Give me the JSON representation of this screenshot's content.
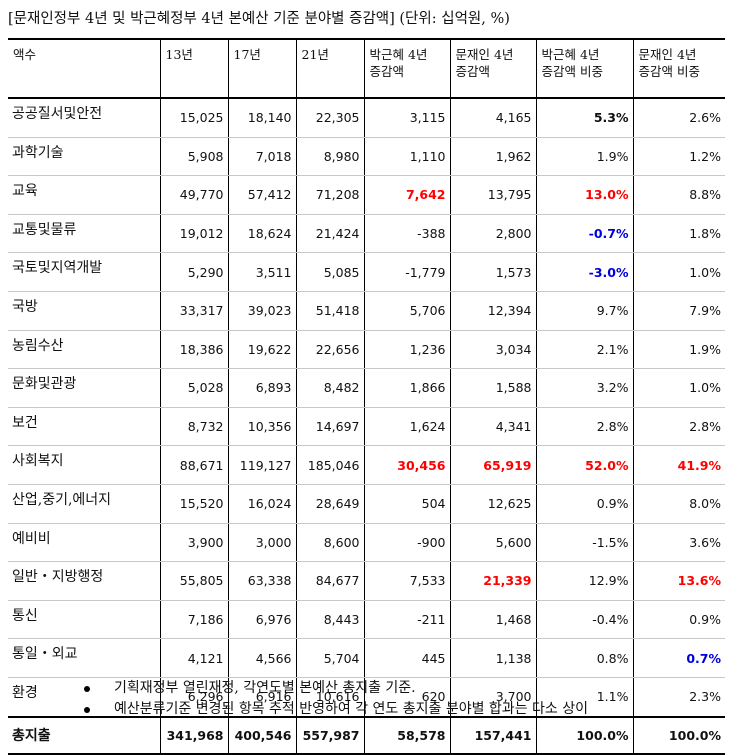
{
  "title": "[문재인정부 4년 및 박근혜정부 4년 본예산 기준 분야별 증감액]    (단위: 십억원, %)",
  "columns": [
    "액수",
    "13년",
    "17년",
    "21년",
    "박근혜 4년 증감액",
    "문재인 4년 증감액",
    "박근혜 4년 증감액 비중",
    "문재인 4년 증감액 비중"
  ],
  "header": {
    "c0": "액수",
    "c1": "13년",
    "c2": "17년",
    "c3": "21년",
    "c4a": "박근혜 4년",
    "c4b": "증감액",
    "c5a": "문재인 4년",
    "c5b": "증감액",
    "c6a": "박근혜 4년",
    "c6b": "증감액 비중",
    "c7a": "문재인 4년",
    "c7b": "증감액 비중"
  },
  "rows": [
    {
      "name": "공공질서및안전",
      "v": [
        "15,025",
        "18,140",
        "22,305",
        "3,115",
        "4,165",
        "5.3%",
        "2.6%"
      ]
    },
    {
      "name": "과학기술",
      "v": [
        "5,908",
        "7,018",
        "8,980",
        "1,110",
        "1,962",
        "1.9%",
        "1.2%"
      ]
    },
    {
      "name": "교육",
      "v": [
        "49,770",
        "57,412",
        "71,208",
        "7,642",
        "13,795",
        "13.0%",
        "8.8%"
      ]
    },
    {
      "name": "교통및물류",
      "v": [
        "19,012",
        "18,624",
        "21,424",
        "-388",
        "2,800",
        "-0.7%",
        "1.8%"
      ]
    },
    {
      "name": "국토및지역개발",
      "v": [
        "5,290",
        "3,511",
        "5,085",
        "-1,779",
        "1,573",
        "-3.0%",
        "1.0%"
      ]
    },
    {
      "name": "국방",
      "v": [
        "33,317",
        "39,023",
        "51,418",
        "5,706",
        "12,394",
        "9.7%",
        "7.9%"
      ]
    },
    {
      "name": "농림수산",
      "v": [
        "18,386",
        "19,622",
        "22,656",
        "1,236",
        "3,034",
        "2.1%",
        "1.9%"
      ]
    },
    {
      "name": "문화및관광",
      "v": [
        "5,028",
        "6,893",
        "8,482",
        "1,866",
        "1,588",
        "3.2%",
        "1.0%"
      ]
    },
    {
      "name": "보건",
      "v": [
        "8,732",
        "10,356",
        "14,697",
        "1,624",
        "4,341",
        "2.8%",
        "2.8%"
      ]
    },
    {
      "name": "사회복지",
      "v": [
        "88,671",
        "119,127",
        "185,046",
        "30,456",
        "65,919",
        "52.0%",
        "41.9%"
      ]
    },
    {
      "name": "산업,중기,에너지",
      "v": [
        "15,520",
        "16,024",
        "28,649",
        "504",
        "12,625",
        "0.9%",
        "8.0%"
      ]
    },
    {
      "name": "예비비",
      "v": [
        "3,900",
        "3,000",
        "8,600",
        "-900",
        "5,600",
        "-1.5%",
        "3.6%"
      ]
    },
    {
      "name": "일반・지방행정",
      "v": [
        "55,805",
        "63,338",
        "84,677",
        "7,533",
        "21,339",
        "12.9%",
        "13.6%"
      ]
    },
    {
      "name": "통신",
      "v": [
        "7,186",
        "6,976",
        "8,443",
        "-211",
        "1,468",
        "-0.4%",
        "0.9%"
      ]
    },
    {
      "name": "통일・외교",
      "v": [
        "4,121",
        "4,566",
        "5,704",
        "445",
        "1,138",
        "0.8%",
        "0.7%"
      ]
    },
    {
      "name": "환경",
      "v": [
        "6,296",
        "6,916",
        "10,616",
        "620",
        "3,700",
        "1.1%",
        "2.3%"
      ]
    }
  ],
  "total": {
    "name": "총지출",
    "v": [
      "341,968",
      "400,546",
      "557,987",
      "58,578",
      "157,441",
      "100.0%",
      "100.0%"
    ]
  },
  "notes": [
    "기획재정부 열린재정, 각연도별 본예산 총지출 기준.",
    "예산분류기준 변경된 항목  추적 반영하여 각 연도 총지출 분야별 합과는 다소 상이"
  ],
  "highlight_colors": {
    "red": "#ff0000",
    "blue": "#0000dd"
  }
}
